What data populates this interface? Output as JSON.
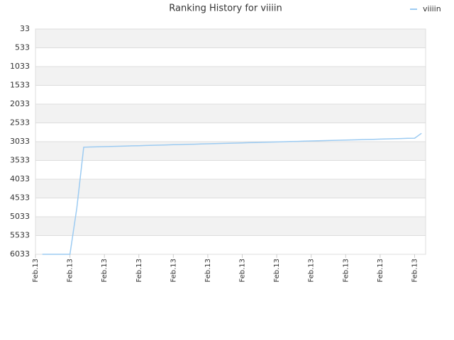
{
  "chart_data": {
    "type": "line",
    "title": "Ranking History for viiiin",
    "categories": [
      "Feb.13",
      null,
      null,
      null,
      null,
      "Feb.13",
      null,
      null,
      null,
      null,
      "Feb.13",
      null,
      null,
      null,
      null,
      "Feb.13",
      null,
      null,
      null,
      null,
      "Feb.13",
      null,
      null,
      null,
      null,
      "Feb.13",
      null,
      null,
      null,
      null,
      "Feb.13",
      null,
      null,
      null,
      null,
      "Feb.13",
      null,
      null,
      null,
      null,
      "Feb.13",
      null,
      null,
      null,
      null,
      "Feb.13",
      null,
      null,
      null,
      null,
      "Feb.13",
      null,
      null,
      null,
      null,
      "Feb.13",
      null
    ],
    "series": [
      {
        "name": "viiiin",
        "color": "#9ccbf2",
        "values": [
          null,
          6033,
          6033,
          6033,
          6033,
          6033,
          4800,
          3180,
          3175,
          3170,
          3165,
          3160,
          3155,
          3150,
          3145,
          3140,
          3135,
          3130,
          3125,
          3120,
          3115,
          3110,
          3105,
          3100,
          3095,
          3090,
          3085,
          3080,
          3075,
          3070,
          3065,
          3060,
          3055,
          3050,
          3045,
          3040,
          3035,
          3030,
          3025,
          3020,
          3015,
          3010,
          3005,
          3000,
          2995,
          2990,
          2985,
          2980,
          2975,
          2970,
          2965,
          2960,
          2955,
          2950,
          2945,
          2940,
          2810
        ]
      }
    ],
    "ylim": [
      33,
      6033
    ],
    "y_inverted": true,
    "yticks": [
      33,
      533,
      1033,
      1533,
      2033,
      2533,
      3033,
      3533,
      4033,
      4533,
      5033,
      5533,
      6033
    ],
    "grid": true,
    "legend": "top-right"
  }
}
